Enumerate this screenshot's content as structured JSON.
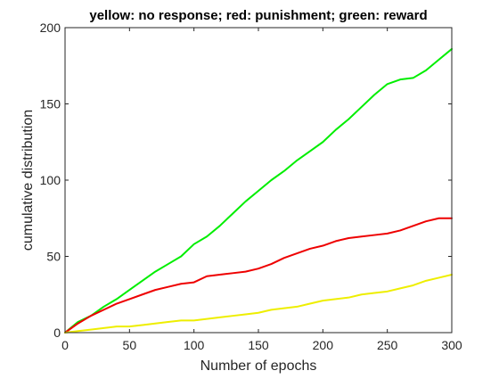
{
  "chart_data": {
    "type": "line",
    "title": "yellow: no response; red: punishment; green: reward",
    "xlabel": "Number of epochs",
    "ylabel": "cumulative distribution",
    "xlim": [
      0,
      300
    ],
    "ylim": [
      0,
      200
    ],
    "xticks": [
      0,
      50,
      100,
      150,
      200,
      250,
      300
    ],
    "yticks": [
      0,
      50,
      100,
      150,
      200
    ],
    "grid": false,
    "legend": "none",
    "series": [
      {
        "color": "#00ee00",
        "x": [
          0,
          10,
          20,
          30,
          40,
          50,
          60,
          70,
          80,
          90,
          100,
          110,
          120,
          130,
          140,
          150,
          160,
          170,
          180,
          190,
          200,
          210,
          220,
          230,
          240,
          250,
          260,
          270,
          280,
          290,
          300
        ],
        "y": [
          0,
          7,
          11,
          17,
          22,
          28,
          34,
          40,
          45,
          50,
          58,
          63,
          70,
          78,
          86,
          93,
          100,
          106,
          113,
          119,
          125,
          133,
          140,
          148,
          156,
          163,
          166,
          167,
          172,
          179,
          186
        ]
      },
      {
        "color": "#ee0000",
        "x": [
          0,
          10,
          20,
          30,
          40,
          50,
          60,
          70,
          80,
          90,
          100,
          110,
          120,
          130,
          140,
          150,
          160,
          170,
          180,
          190,
          200,
          210,
          220,
          230,
          240,
          250,
          260,
          270,
          280,
          290,
          300
        ],
        "y": [
          0,
          6,
          11,
          15,
          19,
          22,
          25,
          28,
          30,
          32,
          33,
          37,
          38,
          39,
          40,
          42,
          45,
          49,
          52,
          55,
          57,
          60,
          62,
          63,
          64,
          65,
          67,
          70,
          73,
          75,
          75
        ]
      },
      {
        "color": "#eeee00",
        "x": [
          0,
          10,
          20,
          30,
          40,
          50,
          60,
          70,
          80,
          90,
          100,
          110,
          120,
          130,
          140,
          150,
          160,
          170,
          180,
          190,
          200,
          210,
          220,
          230,
          240,
          250,
          260,
          270,
          280,
          290,
          300
        ],
        "y": [
          0,
          1,
          2,
          3,
          4,
          4,
          5,
          6,
          7,
          8,
          8,
          9,
          10,
          11,
          12,
          13,
          15,
          16,
          17,
          19,
          21,
          22,
          23,
          25,
          26,
          27,
          29,
          31,
          34,
          36,
          38
        ]
      }
    ]
  }
}
